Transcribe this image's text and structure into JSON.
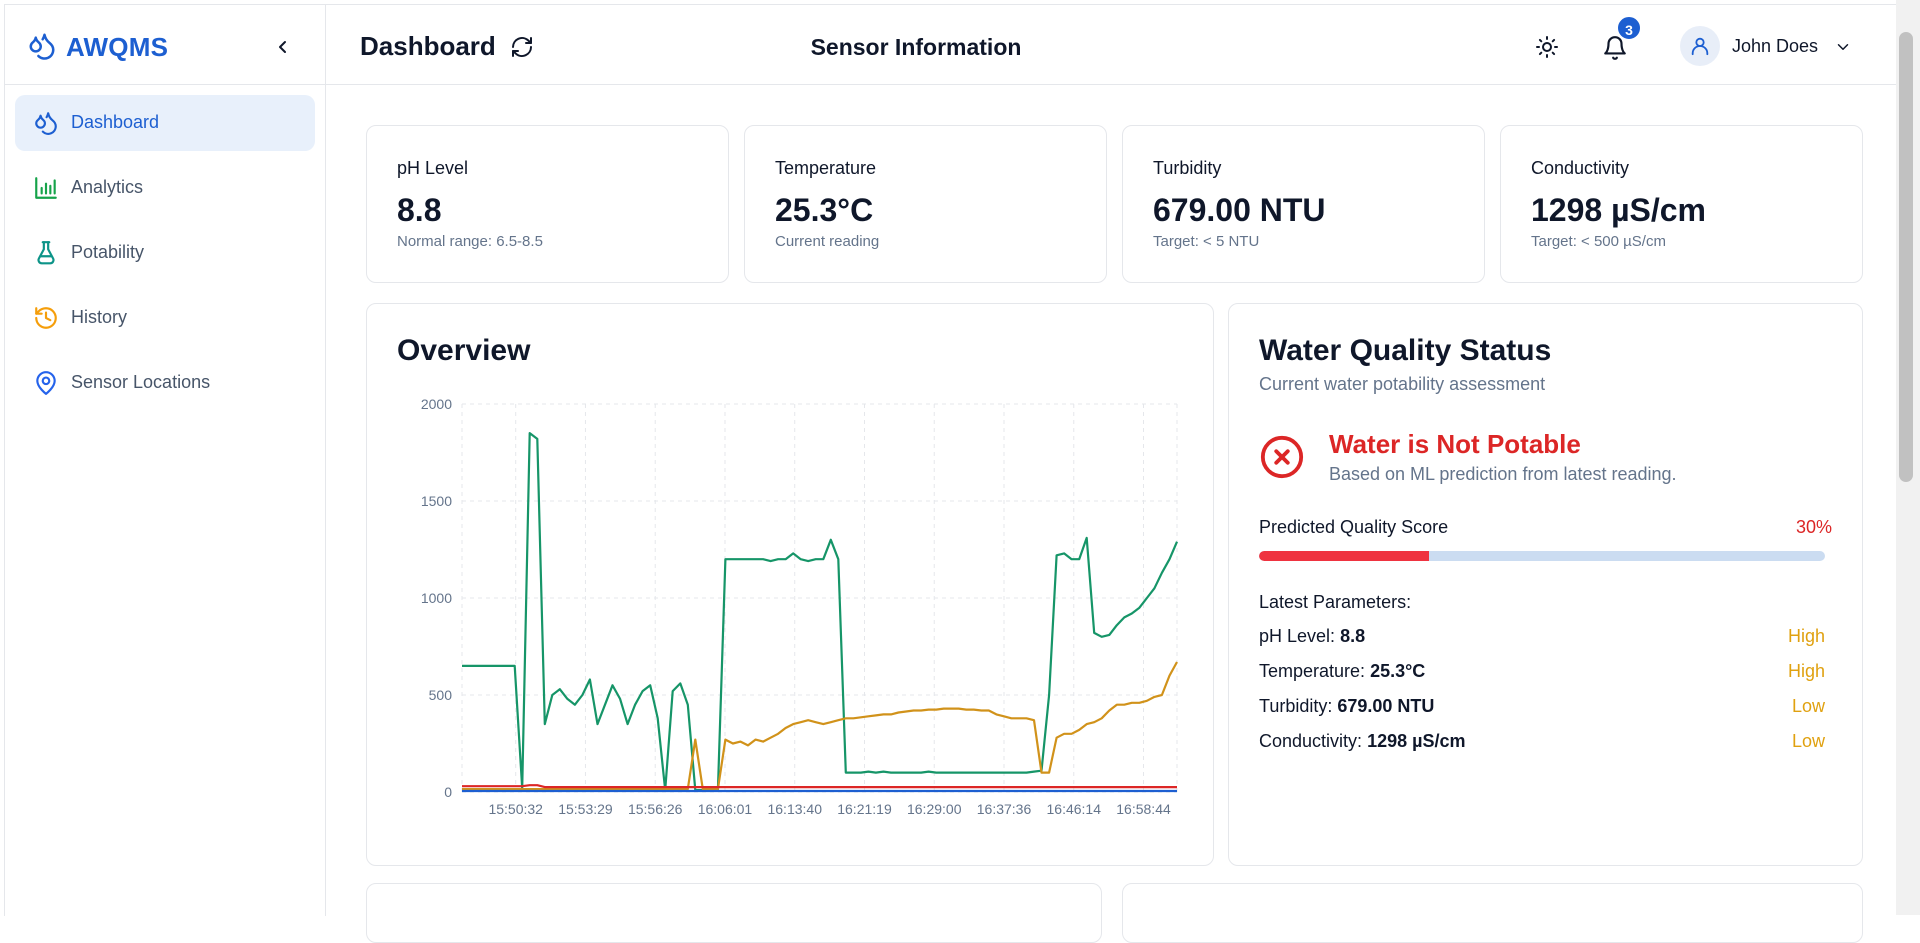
{
  "colors": {
    "accent": "#1d5fd1",
    "danger": "#dc2626",
    "warning": "#e0a110",
    "series_green": "#169568",
    "series_amber": "#d1921a",
    "series_red": "#dc2626",
    "series_blue": "#1d5fd1"
  },
  "sidebar": {
    "brand": "AWQMS",
    "brand_icon": "water-drops-icon",
    "collapse_icon": "chevron-left-icon",
    "items": [
      {
        "label": "Dashboard",
        "icon": "water-drops-icon",
        "active": true
      },
      {
        "label": "Analytics",
        "icon": "bar-chart-icon",
        "active": false
      },
      {
        "label": "Potability",
        "icon": "flask-icon",
        "active": false
      },
      {
        "label": "History",
        "icon": "history-clock-icon",
        "active": false
      },
      {
        "label": "Sensor Locations",
        "icon": "map-pin-icon",
        "active": false
      }
    ]
  },
  "header": {
    "title": "Dashboard",
    "center_title": "Sensor Information",
    "notification_count": "3",
    "user_name": "John Does"
  },
  "stats": [
    {
      "title": "pH Level",
      "value": "8.8",
      "sub": "Normal range: 6.5-8.5"
    },
    {
      "title": "Temperature",
      "value": "25.3°C",
      "sub": "Current reading"
    },
    {
      "title": "Turbidity",
      "value": "679.00 NTU",
      "sub": "Target: < 5 NTU"
    },
    {
      "title": "Conductivity",
      "value": "1298 µS/cm",
      "sub": "Target: < 500 µS/cm"
    }
  ],
  "overview": {
    "title": "Overview"
  },
  "chart_data": {
    "type": "line",
    "title": "Overview",
    "ylim": [
      0,
      2000
    ],
    "yticks": [
      "0",
      "500",
      "1000",
      "1500",
      "2000"
    ],
    "xtick_labels": [
      "15:50:32",
      "15:53:29",
      "15:56:26",
      "16:06:01",
      "16:13:40",
      "16:21:19",
      "16:29:00",
      "16:37:36",
      "16:46:14",
      "16:58:44"
    ],
    "grid": true,
    "series": [
      {
        "color": "#169568",
        "values": [
          650,
          650,
          650,
          650,
          650,
          650,
          650,
          650,
          20,
          1850,
          1820,
          350,
          500,
          530,
          480,
          450,
          500,
          580,
          350,
          450,
          550,
          480,
          350,
          450,
          520,
          550,
          380,
          10,
          520,
          560,
          450,
          10,
          10,
          10,
          10,
          1200,
          1200,
          1200,
          1200,
          1200,
          1200,
          1190,
          1200,
          1200,
          1230,
          1200,
          1190,
          1200,
          1200,
          1300,
          1200,
          100,
          100,
          100,
          105,
          100,
          105,
          100,
          100,
          100,
          100,
          100,
          105,
          100,
          100,
          100,
          100,
          100,
          100,
          100,
          100,
          100,
          100,
          100,
          100,
          100,
          105,
          110,
          500,
          1220,
          1230,
          1200,
          1200,
          1310,
          820,
          800,
          810,
          860,
          900,
          920,
          950,
          1000,
          1050,
          1130,
          1200,
          1290
        ]
      },
      {
        "color": "#d1921a",
        "values": [
          15,
          15,
          15,
          15,
          15,
          15,
          15,
          15,
          15,
          15,
          15,
          15,
          15,
          15,
          15,
          15,
          15,
          15,
          15,
          15,
          15,
          15,
          15,
          15,
          15,
          15,
          15,
          15,
          15,
          15,
          15,
          270,
          15,
          15,
          15,
          270,
          250,
          260,
          240,
          270,
          260,
          280,
          300,
          330,
          350,
          360,
          370,
          360,
          350,
          360,
          370,
          380,
          380,
          385,
          390,
          395,
          400,
          400,
          410,
          415,
          420,
          420,
          425,
          425,
          430,
          430,
          430,
          425,
          425,
          420,
          420,
          400,
          390,
          380,
          380,
          380,
          370,
          100,
          100,
          280,
          300,
          300,
          320,
          350,
          360,
          380,
          420,
          450,
          450,
          460,
          460,
          470,
          490,
          500,
          600,
          670
        ]
      },
      {
        "color": "#dc2626",
        "values": [
          30,
          30,
          30,
          30,
          30,
          30,
          30,
          30,
          30,
          35,
          35,
          25,
          25,
          25,
          25,
          25,
          25,
          25,
          25,
          25,
          25,
          25,
          25,
          25,
          25,
          25,
          25,
          25,
          25,
          25,
          25,
          25,
          25,
          25,
          25,
          25,
          25,
          25,
          25,
          25,
          25,
          25,
          25,
          25,
          25,
          25,
          25,
          25,
          25,
          25,
          25,
          25,
          25,
          25,
          25,
          25,
          25,
          25,
          25,
          25,
          25,
          25,
          25,
          25,
          25,
          25,
          25,
          25,
          25,
          25,
          25,
          25,
          25,
          25,
          25,
          25,
          25,
          25,
          25,
          25,
          25,
          25,
          25,
          25,
          25,
          25,
          25,
          25,
          25,
          25,
          25,
          25,
          25,
          25,
          25,
          25
        ]
      },
      {
        "color": "#1d5fd1",
        "values": [
          5,
          5,
          5,
          5,
          5,
          5,
          5,
          5,
          5,
          5,
          5,
          5,
          5,
          5,
          5,
          5,
          5,
          5,
          5,
          5,
          5,
          5,
          5,
          5,
          5,
          5,
          5,
          5,
          5,
          5,
          5,
          5,
          5,
          5,
          5,
          5,
          5,
          5,
          5,
          5,
          5,
          5,
          5,
          5,
          5,
          5,
          5,
          5,
          5,
          5,
          5,
          5,
          5,
          5,
          5,
          5,
          5,
          5,
          5,
          5,
          5,
          5,
          5,
          5,
          5,
          5,
          5,
          5,
          5,
          5,
          5,
          5,
          5,
          5,
          5,
          5,
          5,
          5,
          5,
          5,
          5,
          5,
          5,
          5,
          5,
          5,
          5,
          5,
          5,
          5,
          5,
          5,
          5,
          5,
          5,
          5
        ]
      }
    ]
  },
  "quality": {
    "title": "Water Quality Status",
    "subtitle": "Current water potability assessment",
    "status": "Water is Not Potable",
    "status_desc": "Based on ML prediction from latest reading.",
    "status_icon": "x-circle-icon",
    "score_label": "Predicted Quality Score",
    "score_text": "30%",
    "score_fraction": 0.3,
    "params_heading": "Latest Parameters:",
    "params": [
      {
        "name": "pH Level:",
        "value": "8.8",
        "flag": "High"
      },
      {
        "name": "Temperature:",
        "value": "25.3°C",
        "flag": "High"
      },
      {
        "name": "Turbidity:",
        "value": "679.00 NTU",
        "flag": "Low"
      },
      {
        "name": "Conductivity:",
        "value": "1298 µS/cm",
        "flag": "Low"
      }
    ]
  }
}
